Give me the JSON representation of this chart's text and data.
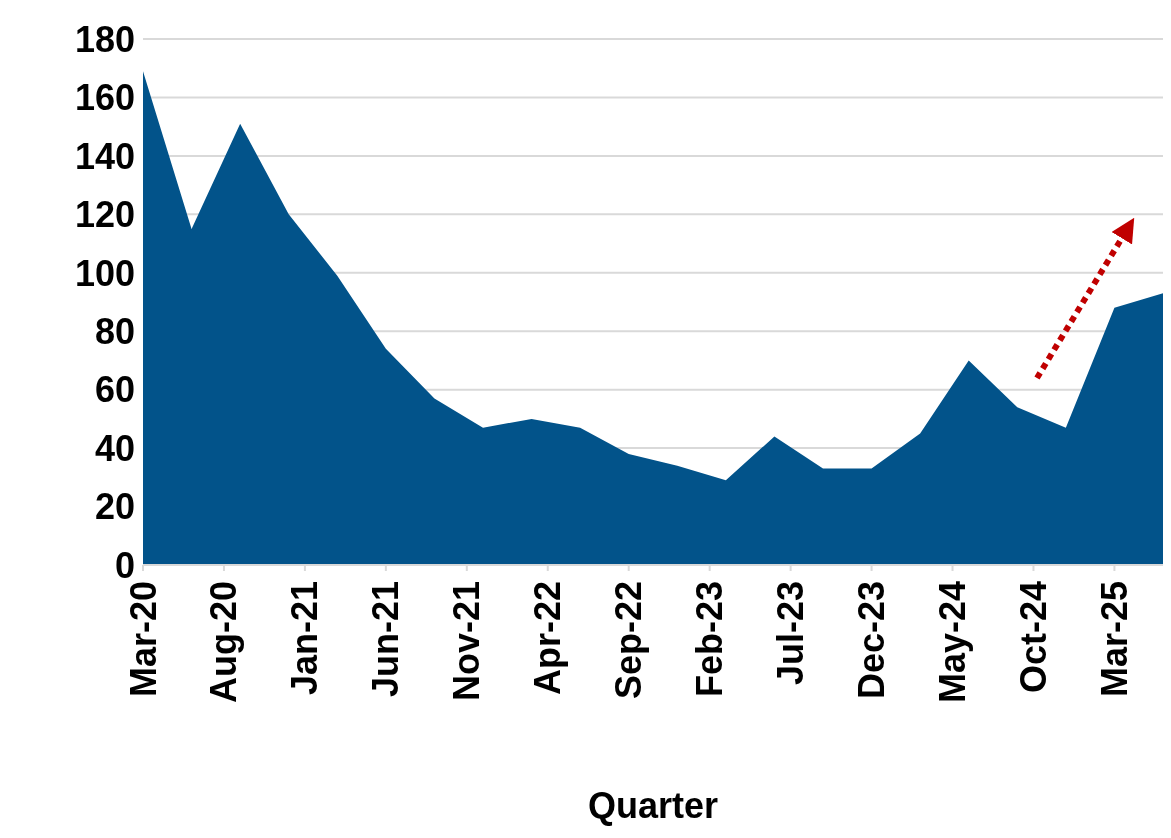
{
  "chart_data": {
    "type": "area",
    "xlabel": "Quarter",
    "x": [
      "2020-03",
      "2020-06",
      "2020-09",
      "2020-12",
      "2021-03",
      "2021-06",
      "2021-09",
      "2021-12",
      "2022-03",
      "2022-06",
      "2022-09",
      "2022-12",
      "2023-03",
      "2023-06",
      "2023-09",
      "2023-12",
      "2024-03",
      "2024-06",
      "2024-09",
      "2024-12",
      "2025-03",
      "2025-06"
    ],
    "series": [
      {
        "color": "#02538a",
        "values": [
          169,
          115,
          151,
          120,
          99,
          74,
          57,
          47,
          50,
          47,
          38,
          34,
          29,
          44,
          33,
          33,
          45,
          70,
          54,
          47,
          88,
          93
        ]
      }
    ],
    "xlim": [
      "2020-03",
      "2025-06"
    ],
    "xticks": [
      {
        "value": "2020-03",
        "label": "Mar-20"
      },
      {
        "value": "2020-08",
        "label": "Aug-20"
      },
      {
        "value": "2021-01",
        "label": "Jan-21"
      },
      {
        "value": "2021-06",
        "label": "Jun-21"
      },
      {
        "value": "2021-11",
        "label": "Nov-21"
      },
      {
        "value": "2022-04",
        "label": "Apr-22"
      },
      {
        "value": "2022-09",
        "label": "Sep-22"
      },
      {
        "value": "2023-02",
        "label": "Feb-23"
      },
      {
        "value": "2023-07",
        "label": "Jul-23"
      },
      {
        "value": "2023-12",
        "label": "Dec-23"
      },
      {
        "value": "2024-05",
        "label": "May-24"
      },
      {
        "value": "2024-10",
        "label": "Oct-24"
      },
      {
        "value": "2025-03",
        "label": "Mar-25"
      }
    ],
    "ylim": [
      0,
      180
    ],
    "yticks": [
      0,
      20,
      40,
      60,
      80,
      100,
      120,
      140,
      160,
      180
    ],
    "grid": "y"
  }
}
